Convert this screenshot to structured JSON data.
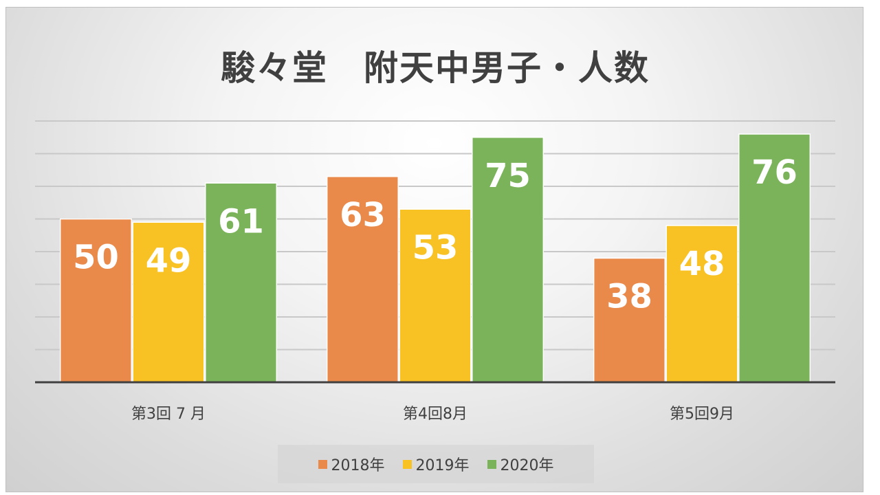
{
  "chart_data": {
    "type": "bar",
    "title": "駿々堂　附天中男子・人数",
    "categories": [
      "第3回 7 月",
      "第4回8月",
      "第5回9月"
    ],
    "series": [
      {
        "name": "2018年",
        "color": "#e9894a",
        "values": [
          50,
          63,
          38
        ]
      },
      {
        "name": "2019年",
        "color": "#f8c124",
        "values": [
          49,
          53,
          48
        ]
      },
      {
        "name": "2020年",
        "color": "#7bb35a",
        "values": [
          61,
          75,
          76
        ]
      }
    ],
    "ylim": [
      0,
      80
    ],
    "y_gridline_step": 10,
    "grid": true,
    "y_axis_labels_shown": false,
    "data_labels": true,
    "legend_position": "bottom"
  }
}
